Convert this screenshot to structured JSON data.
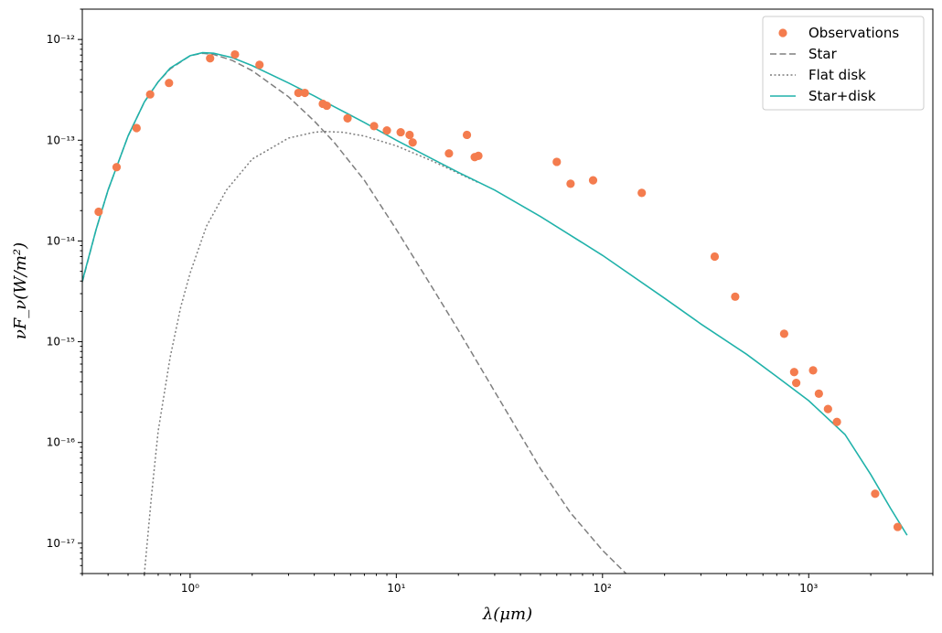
{
  "chart_data": {
    "type": "scatter",
    "x_scale": "log",
    "y_scale": "log",
    "xlim": [
      0.3,
      4000
    ],
    "ylim": [
      5e-18,
      2e-12
    ],
    "xlabel": "λ(μm)",
    "ylabel": "νF_ν(W/m²)",
    "grid": false,
    "legend_position": "top-right",
    "x_ticks": [
      {
        "value": 1,
        "label": "10⁰"
      },
      {
        "value": 10,
        "label": "10¹"
      },
      {
        "value": 100,
        "label": "10²"
      },
      {
        "value": 1000,
        "label": "10³"
      }
    ],
    "y_ticks": [
      {
        "value": 1e-17,
        "label": "10⁻¹⁷"
      },
      {
        "value": 1e-16,
        "label": "10⁻¹⁶"
      },
      {
        "value": 1e-15,
        "label": "10⁻¹⁵"
      },
      {
        "value": 1e-14,
        "label": "10⁻¹⁴"
      },
      {
        "value": 1e-13,
        "label": "10⁻¹³"
      },
      {
        "value": 1e-12,
        "label": "10⁻¹²"
      }
    ],
    "series": [
      {
        "name": "Observations",
        "kind": "scatter",
        "color": "#f47c4e",
        "points": [
          [
            0.36,
            1.95e-14
          ],
          [
            0.44,
            5.4e-14
          ],
          [
            0.55,
            1.32e-13
          ],
          [
            0.64,
            2.85e-13
          ],
          [
            0.79,
            3.7e-13
          ],
          [
            1.25,
            6.5e-13
          ],
          [
            1.65,
            7.1e-13
          ],
          [
            2.17,
            5.6e-13
          ],
          [
            3.35,
            2.95e-13
          ],
          [
            3.6,
            2.95e-13
          ],
          [
            4.4,
            2.3e-13
          ],
          [
            4.6,
            2.2e-13
          ],
          [
            5.8,
            1.65e-13
          ],
          [
            7.8,
            1.38e-13
          ],
          [
            9.0,
            1.25e-13
          ],
          [
            10.5,
            1.2e-13
          ],
          [
            11.6,
            1.13e-13
          ],
          [
            12.0,
            9.5e-14
          ],
          [
            18.0,
            7.4e-14
          ],
          [
            22.0,
            1.13e-13
          ],
          [
            24.0,
            6.8e-14
          ],
          [
            25.0,
            7e-14
          ],
          [
            60.0,
            6.1e-14
          ],
          [
            70.0,
            3.7e-14
          ],
          [
            90.0,
            4e-14
          ],
          [
            155.0,
            3e-14
          ],
          [
            350.0,
            7e-15
          ],
          [
            440.0,
            2.8e-15
          ],
          [
            760.0,
            1.2e-15
          ],
          [
            850.0,
            5e-16
          ],
          [
            870.0,
            3.9e-16
          ],
          [
            1050.0,
            5.2e-16
          ],
          [
            1120.0,
            3.05e-16
          ],
          [
            1240.0,
            2.15e-16
          ],
          [
            1370.0,
            1.6e-16
          ],
          [
            2100.0,
            3.1e-17
          ],
          [
            2700.0,
            1.45e-17
          ]
        ]
      },
      {
        "name": "Star",
        "kind": "line",
        "style": "dashed",
        "color": "#7f7f7f",
        "points": [
          [
            0.3,
            3.9e-15
          ],
          [
            0.35,
            1.3e-14
          ],
          [
            0.4,
            3.2e-14
          ],
          [
            0.5,
            1.1e-13
          ],
          [
            0.6,
            2.4e-13
          ],
          [
            0.7,
            3.8e-13
          ],
          [
            0.8,
            5.1e-13
          ],
          [
            1.0,
            6.9e-13
          ],
          [
            1.15,
            7.3e-13
          ],
          [
            1.3,
            7.1e-13
          ],
          [
            1.6,
            6.2e-13
          ],
          [
            2.0,
            4.9e-13
          ],
          [
            3.0,
            2.7e-13
          ],
          [
            4.0,
            1.55e-13
          ],
          [
            5.0,
            9.5e-14
          ],
          [
            7.0,
            4e-14
          ],
          [
            10.0,
            1.3e-14
          ],
          [
            15.0,
            3.4e-15
          ],
          [
            20.0,
            1.3e-15
          ],
          [
            30.0,
            3.2e-16
          ],
          [
            50.0,
            5.5e-17
          ],
          [
            70.0,
            2e-17
          ],
          [
            100.0,
            8.5e-18
          ],
          [
            130.0,
            5e-18
          ]
        ]
      },
      {
        "name": "Flat disk",
        "kind": "line",
        "style": "dotted",
        "color": "#7f7f7f",
        "points": [
          [
            0.6,
            5e-18
          ],
          [
            0.65,
            3e-17
          ],
          [
            0.7,
            1.3e-16
          ],
          [
            0.8,
            7e-16
          ],
          [
            0.9,
            2.2e-15
          ],
          [
            1.0,
            4.8e-15
          ],
          [
            1.2,
            1.4e-14
          ],
          [
            1.5,
            3.2e-14
          ],
          [
            2.0,
            6.5e-14
          ],
          [
            3.0,
            1.05e-13
          ],
          [
            4.0,
            1.2e-13
          ],
          [
            4.5,
            1.22e-13
          ],
          [
            5.5,
            1.2e-13
          ],
          [
            7.0,
            1.1e-13
          ],
          [
            10.0,
            8.8e-14
          ],
          [
            15.0,
            6.2e-14
          ],
          [
            20.0,
            4.7e-14
          ],
          [
            25.0,
            3.8e-14
          ]
        ]
      },
      {
        "name": "Star+disk",
        "kind": "line",
        "style": "solid",
        "color": "#20b2aa",
        "points": [
          [
            0.3,
            4e-15
          ],
          [
            0.35,
            1.3e-14
          ],
          [
            0.4,
            3.2e-14
          ],
          [
            0.5,
            1.1e-13
          ],
          [
            0.6,
            2.4e-13
          ],
          [
            0.7,
            3.8e-13
          ],
          [
            0.8,
            5.2e-13
          ],
          [
            1.0,
            6.9e-13
          ],
          [
            1.15,
            7.4e-13
          ],
          [
            1.3,
            7.3e-13
          ],
          [
            1.6,
            6.6e-13
          ],
          [
            2.0,
            5.5e-13
          ],
          [
            3.0,
            3.7e-13
          ],
          [
            4.0,
            2.75e-13
          ],
          [
            5.0,
            2.15e-13
          ],
          [
            7.0,
            1.5e-13
          ],
          [
            10.0,
            1e-13
          ],
          [
            15.0,
            6.5e-14
          ],
          [
            20.0,
            4.8e-14
          ],
          [
            30.0,
            3.2e-14
          ],
          [
            50.0,
            1.75e-14
          ],
          [
            100.0,
            7.2e-15
          ],
          [
            200.0,
            2.7e-15
          ],
          [
            300.0,
            1.5e-15
          ],
          [
            500.0,
            7.5e-16
          ],
          [
            700.0,
            4.5e-16
          ],
          [
            1000.0,
            2.6e-16
          ],
          [
            1500.0,
            1.2e-16
          ],
          [
            2000.0,
            4.8e-17
          ],
          [
            2500.0,
            2.2e-17
          ],
          [
            3000.0,
            1.2e-17
          ]
        ]
      }
    ]
  }
}
